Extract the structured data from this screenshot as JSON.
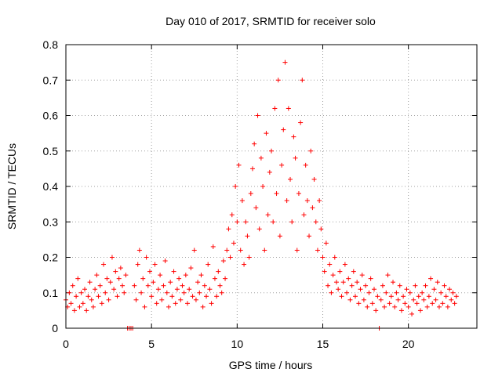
{
  "chart_data": {
    "type": "scatter",
    "title": "Day 010 of 2017, SRMTID for receiver solo",
    "xlabel": "GPS time / hours",
    "ylabel": "SRMTID / TECUs",
    "xlim": [
      0,
      24
    ],
    "ylim": [
      0,
      0.8
    ],
    "grid": true,
    "marker": "+",
    "x_ticks": [
      0,
      5,
      10,
      15,
      20
    ],
    "y_ticks": [
      0,
      0.1,
      0.2,
      0.3,
      0.4,
      0.5,
      0.6,
      0.7,
      0.8
    ],
    "x_tick_labels": [
      "0",
      "5",
      "10",
      "15",
      "20"
    ],
    "y_tick_labels": [
      "0",
      "0.1",
      "0.2",
      "0.3",
      "0.4",
      "0.5",
      "0.6",
      "0.7",
      "0.8"
    ],
    "series": [
      {
        "name": "SRMTID",
        "color": "#ff0000",
        "points": [
          [
            0.0,
            0.08
          ],
          [
            0.1,
            0.06
          ],
          [
            0.2,
            0.1
          ],
          [
            0.3,
            0.07
          ],
          [
            0.4,
            0.12
          ],
          [
            0.5,
            0.05
          ],
          [
            0.6,
            0.09
          ],
          [
            0.7,
            0.14
          ],
          [
            0.8,
            0.06
          ],
          [
            0.9,
            0.1
          ],
          [
            1.0,
            0.07
          ],
          [
            1.1,
            0.11
          ],
          [
            1.2,
            0.05
          ],
          [
            1.3,
            0.09
          ],
          [
            1.4,
            0.13
          ],
          [
            1.5,
            0.08
          ],
          [
            1.6,
            0.06
          ],
          [
            1.7,
            0.11
          ],
          [
            1.8,
            0.15
          ],
          [
            1.9,
            0.09
          ],
          [
            2.0,
            0.12
          ],
          [
            2.1,
            0.07
          ],
          [
            2.2,
            0.18
          ],
          [
            2.3,
            0.1
          ],
          [
            2.4,
            0.14
          ],
          [
            2.5,
            0.08
          ],
          [
            2.6,
            0.13
          ],
          [
            2.7,
            0.2
          ],
          [
            2.8,
            0.11
          ],
          [
            2.9,
            0.16
          ],
          [
            3.0,
            0.09
          ],
          [
            3.1,
            0.14
          ],
          [
            3.2,
            0.17
          ],
          [
            3.3,
            0.12
          ],
          [
            3.4,
            0.1
          ],
          [
            3.5,
            0.15
          ],
          [
            3.6,
            0.0
          ],
          [
            3.7,
            0.0
          ],
          [
            3.8,
            0.0
          ],
          [
            3.9,
            0.0
          ],
          [
            4.0,
            0.12
          ],
          [
            4.1,
            0.08
          ],
          [
            4.2,
            0.18
          ],
          [
            4.3,
            0.22
          ],
          [
            4.4,
            0.1
          ],
          [
            4.5,
            0.14
          ],
          [
            4.6,
            0.06
          ],
          [
            4.7,
            0.2
          ],
          [
            4.8,
            0.12
          ],
          [
            4.9,
            0.16
          ],
          [
            5.0,
            0.09
          ],
          [
            5.1,
            0.13
          ],
          [
            5.2,
            0.18
          ],
          [
            5.3,
            0.07
          ],
          [
            5.4,
            0.11
          ],
          [
            5.5,
            0.15
          ],
          [
            5.6,
            0.08
          ],
          [
            5.7,
            0.12
          ],
          [
            5.8,
            0.19
          ],
          [
            5.9,
            0.1
          ],
          [
            6.0,
            0.06
          ],
          [
            6.1,
            0.13
          ],
          [
            6.2,
            0.09
          ],
          [
            6.3,
            0.16
          ],
          [
            6.4,
            0.07
          ],
          [
            6.5,
            0.11
          ],
          [
            6.6,
            0.14
          ],
          [
            6.7,
            0.08
          ],
          [
            6.8,
            0.12
          ],
          [
            6.9,
            0.1
          ],
          [
            7.0,
            0.15
          ],
          [
            7.1,
            0.07
          ],
          [
            7.2,
            0.11
          ],
          [
            7.3,
            0.17
          ],
          [
            7.4,
            0.09
          ],
          [
            7.5,
            0.22
          ],
          [
            7.6,
            0.08
          ],
          [
            7.7,
            0.13
          ],
          [
            7.8,
            0.1
          ],
          [
            7.9,
            0.15
          ],
          [
            8.0,
            0.06
          ],
          [
            8.1,
            0.12
          ],
          [
            8.2,
            0.09
          ],
          [
            8.3,
            0.18
          ],
          [
            8.4,
            0.11
          ],
          [
            8.5,
            0.07
          ],
          [
            8.6,
            0.23
          ],
          [
            8.7,
            0.14
          ],
          [
            8.8,
            0.09
          ],
          [
            8.9,
            0.16
          ],
          [
            9.0,
            0.12
          ],
          [
            9.1,
            0.1
          ],
          [
            9.2,
            0.19
          ],
          [
            9.3,
            0.14
          ],
          [
            9.4,
            0.22
          ],
          [
            9.5,
            0.28
          ],
          [
            9.6,
            0.2
          ],
          [
            9.7,
            0.32
          ],
          [
            9.8,
            0.24
          ],
          [
            9.9,
            0.4
          ],
          [
            10.0,
            0.3
          ],
          [
            10.1,
            0.46
          ],
          [
            10.2,
            0.22
          ],
          [
            10.3,
            0.36
          ],
          [
            10.4,
            0.18
          ],
          [
            10.5,
            0.3
          ],
          [
            10.6,
            0.26
          ],
          [
            10.7,
            0.2
          ],
          [
            10.8,
            0.38
          ],
          [
            10.9,
            0.45
          ],
          [
            11.0,
            0.52
          ],
          [
            11.1,
            0.34
          ],
          [
            11.2,
            0.6
          ],
          [
            11.3,
            0.28
          ],
          [
            11.4,
            0.48
          ],
          [
            11.5,
            0.4
          ],
          [
            11.6,
            0.22
          ],
          [
            11.7,
            0.55
          ],
          [
            11.8,
            0.32
          ],
          [
            11.9,
            0.44
          ],
          [
            12.0,
            0.5
          ],
          [
            12.1,
            0.3
          ],
          [
            12.2,
            0.62
          ],
          [
            12.3,
            0.38
          ],
          [
            12.4,
            0.7
          ],
          [
            12.5,
            0.26
          ],
          [
            12.6,
            0.46
          ],
          [
            12.7,
            0.56
          ],
          [
            12.8,
            0.75
          ],
          [
            12.9,
            0.36
          ],
          [
            13.0,
            0.62
          ],
          [
            13.1,
            0.42
          ],
          [
            13.2,
            0.3
          ],
          [
            13.3,
            0.54
          ],
          [
            13.4,
            0.48
          ],
          [
            13.5,
            0.22
          ],
          [
            13.6,
            0.38
          ],
          [
            13.7,
            0.58
          ],
          [
            13.8,
            0.7
          ],
          [
            13.9,
            0.32
          ],
          [
            14.0,
            0.46
          ],
          [
            14.1,
            0.36
          ],
          [
            14.2,
            0.26
          ],
          [
            14.3,
            0.5
          ],
          [
            14.4,
            0.34
          ],
          [
            14.5,
            0.42
          ],
          [
            14.6,
            0.3
          ],
          [
            14.7,
            0.22
          ],
          [
            14.8,
            0.36
          ],
          [
            14.9,
            0.28
          ],
          [
            15.0,
            0.2
          ],
          [
            15.1,
            0.16
          ],
          [
            15.2,
            0.24
          ],
          [
            15.3,
            0.12
          ],
          [
            15.4,
            0.18
          ],
          [
            15.5,
            0.1
          ],
          [
            15.6,
            0.15
          ],
          [
            15.7,
            0.2
          ],
          [
            15.8,
            0.13
          ],
          [
            15.9,
            0.11
          ],
          [
            16.0,
            0.16
          ],
          [
            16.1,
            0.09
          ],
          [
            16.2,
            0.13
          ],
          [
            16.3,
            0.18
          ],
          [
            16.4,
            0.1
          ],
          [
            16.5,
            0.14
          ],
          [
            16.6,
            0.08
          ],
          [
            16.7,
            0.12
          ],
          [
            16.8,
            0.16
          ],
          [
            16.9,
            0.09
          ],
          [
            17.0,
            0.13
          ],
          [
            17.1,
            0.07
          ],
          [
            17.2,
            0.11
          ],
          [
            17.3,
            0.15
          ],
          [
            17.4,
            0.08
          ],
          [
            17.5,
            0.12
          ],
          [
            17.6,
            0.06
          ],
          [
            17.7,
            0.1
          ],
          [
            17.8,
            0.14
          ],
          [
            17.9,
            0.07
          ],
          [
            18.0,
            0.11
          ],
          [
            18.1,
            0.05
          ],
          [
            18.2,
            0.09
          ],
          [
            18.3,
            0.0
          ],
          [
            18.4,
            0.08
          ],
          [
            18.5,
            0.12
          ],
          [
            18.6,
            0.06
          ],
          [
            18.7,
            0.1
          ],
          [
            18.8,
            0.15
          ],
          [
            18.9,
            0.07
          ],
          [
            19.0,
            0.09
          ],
          [
            19.1,
            0.13
          ],
          [
            19.2,
            0.06
          ],
          [
            19.3,
            0.1
          ],
          [
            19.4,
            0.08
          ],
          [
            19.5,
            0.12
          ],
          [
            19.6,
            0.05
          ],
          [
            19.7,
            0.09
          ],
          [
            19.8,
            0.07
          ],
          [
            19.9,
            0.11
          ],
          [
            20.0,
            0.06
          ],
          [
            20.1,
            0.1
          ],
          [
            20.2,
            0.04
          ],
          [
            20.3,
            0.08
          ],
          [
            20.4,
            0.12
          ],
          [
            20.5,
            0.07
          ],
          [
            20.6,
            0.09
          ],
          [
            20.7,
            0.05
          ],
          [
            20.8,
            0.1
          ],
          [
            20.9,
            0.08
          ],
          [
            21.0,
            0.12
          ],
          [
            21.1,
            0.06
          ],
          [
            21.2,
            0.09
          ],
          [
            21.3,
            0.14
          ],
          [
            21.4,
            0.07
          ],
          [
            21.5,
            0.11
          ],
          [
            21.6,
            0.08
          ],
          [
            21.7,
            0.13
          ],
          [
            21.8,
            0.06
          ],
          [
            21.9,
            0.1
          ],
          [
            22.0,
            0.07
          ],
          [
            22.1,
            0.12
          ],
          [
            22.2,
            0.09
          ],
          [
            22.3,
            0.06
          ],
          [
            22.4,
            0.11
          ],
          [
            22.5,
            0.08
          ],
          [
            22.6,
            0.1
          ],
          [
            22.7,
            0.07
          ],
          [
            22.8,
            0.09
          ]
        ]
      }
    ]
  }
}
